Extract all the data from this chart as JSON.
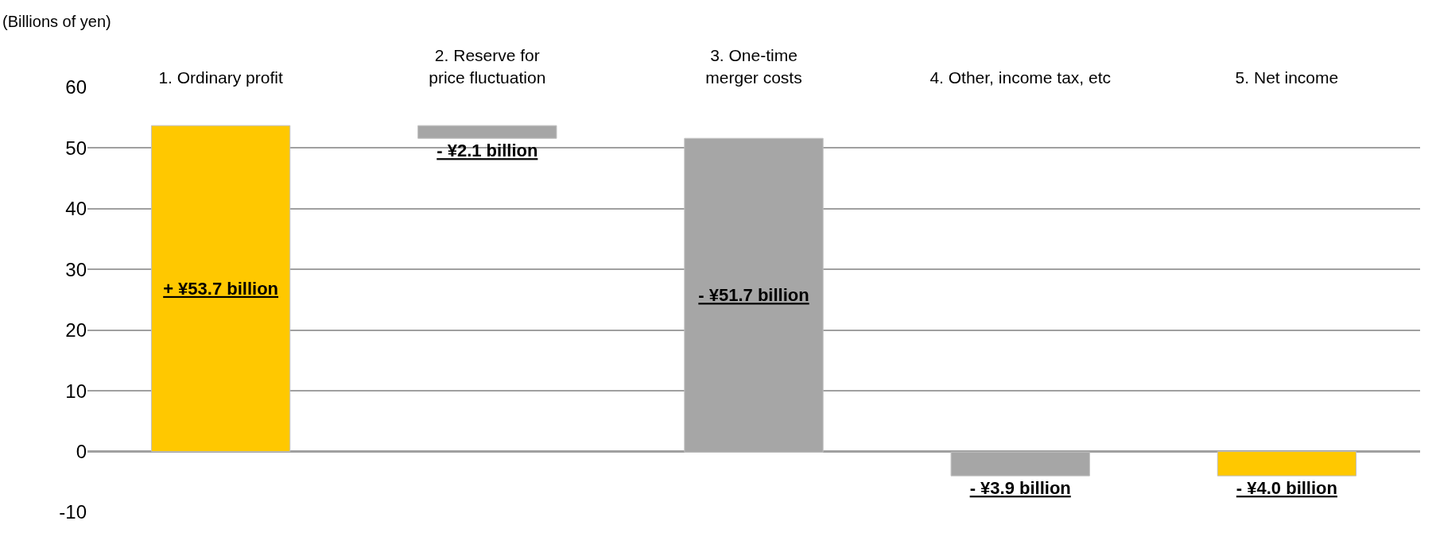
{
  "chart_data": {
    "type": "bar",
    "ylabel": "(Billions of yen)",
    "categories": [
      "1. Ordinary profit",
      "2. Reserve for\nprice fluctuation",
      "3. One-time\nmerger costs",
      "4. Other, income tax, etc",
      "5. Net income"
    ],
    "values": [
      53.7,
      -2.1,
      -51.7,
      -3.9,
      -4.0
    ],
    "base": [
      0,
      53.7,
      51.6,
      -0.1,
      0
    ],
    "colors": [
      "#ffc800",
      "#a6a6a6",
      "#a6a6a6",
      "#a6a6a6",
      "#ffc800"
    ],
    "value_labels": [
      "+ ¥53.7 billion",
      "- ¥2.1 billion",
      "- ¥51.7 billion",
      "- ¥3.9 billion",
      "- ¥4.0 billion"
    ],
    "ylim": [
      -10,
      60
    ],
    "yticks": [
      -10,
      0,
      10,
      20,
      30,
      40,
      50,
      60
    ],
    "grid": "y"
  }
}
